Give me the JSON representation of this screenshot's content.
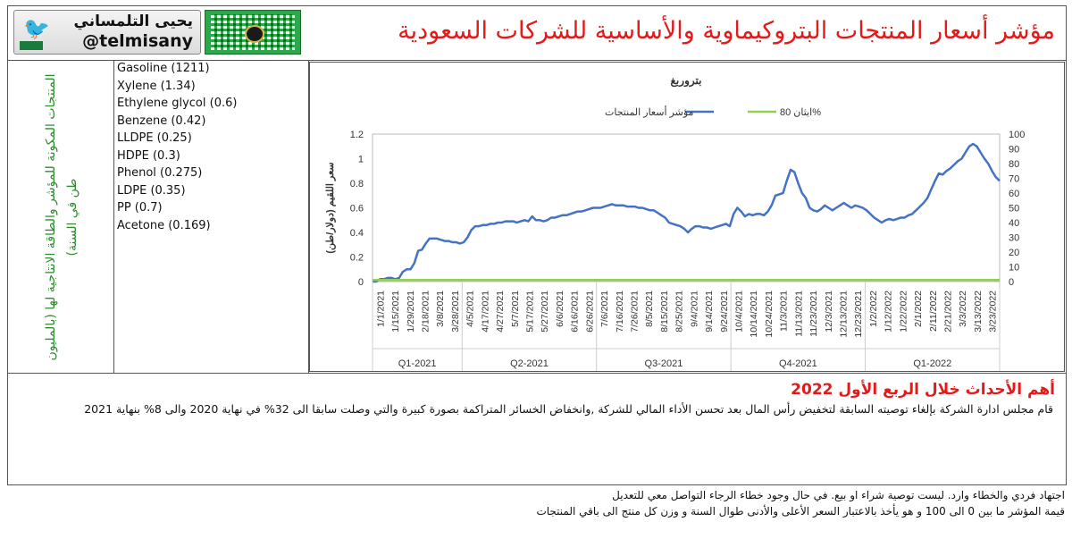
{
  "header": {
    "title": "مؤشر أسعار المنتجات البتروكيماوية والأساسية للشركات السعودية",
    "twitter_name": "يحيى التلمساني",
    "twitter_handle": "@telmisany",
    "twitter_icon": "bird-icon"
  },
  "left_note": "المنتجات المكونة للمؤشر والطاقة الانتاجية لها (بالمليون طن في السنة)",
  "products": [
    "Gasoline (1211)",
    "Xylene (1.34)",
    "Ethylene glycol (0.6)",
    "Benzene (0.42)",
    "LLDPE (0.25)",
    "HDPE (0.3)",
    "Phenol (0.275)",
    "LDPE (0.35)",
    "PP (0.7)",
    "Acetone (0.169)"
  ],
  "chart_data": {
    "type": "line",
    "title": "بتروربغ",
    "ylabel": "سعر اللقيم (دولار/طن)",
    "ylim": [
      0,
      1.2
    ],
    "y2lim": [
      0,
      100
    ],
    "y_ticks": [
      "0",
      "0.2",
      "0.4",
      "0.6",
      "0.8",
      "1",
      "1.2"
    ],
    "y2_ticks": [
      "0",
      "10",
      "20",
      "30",
      "40",
      "50",
      "60",
      "70",
      "80",
      "90",
      "100"
    ],
    "x_ticks": [
      "1/1/2021",
      "1/15/2021",
      "1/29/2021",
      "2/18/2021",
      "3/8/2021",
      "3/28/2021",
      "4/5/2021",
      "4/17/2021",
      "4/27/2021",
      "5/7/2021",
      "5/17/2021",
      "5/27/2021",
      "6/6/2021",
      "6/16/2021",
      "6/26/2021",
      "7/6/2021",
      "7/16/2021",
      "7/26/2021",
      "8/5/2021",
      "8/15/2021",
      "8/25/2021",
      "9/4/2021",
      "9/14/2021",
      "9/24/2021",
      "10/4/2021",
      "10/14/2021",
      "10/24/2021",
      "11/3/2021",
      "11/13/2021",
      "11/23/2021",
      "12/3/2021",
      "12/13/2021",
      "12/23/2021",
      "1/2/2022",
      "1/12/2022",
      "1/22/2022",
      "2/1/2022",
      "2/11/2022",
      "2/21/2022",
      "3/3/2022",
      "3/13/2022",
      "3/23/2022"
    ],
    "quarters": [
      "Q1-2021",
      "Q2-2021",
      "Q3-2021",
      "Q4-2021",
      "Q1-2022"
    ],
    "legend_placement": "top",
    "series": [
      {
        "name": "مؤشر أسعار المنتجات",
        "color": "#4472c4",
        "axis": "left",
        "values": [
          0,
          0,
          0.02,
          0.02,
          0.03,
          0.03,
          0.02,
          0.03,
          0.08,
          0.1,
          0.1,
          0.15,
          0.25,
          0.26,
          0.31,
          0.35,
          0.35,
          0.35,
          0.34,
          0.33,
          0.33,
          0.32,
          0.32,
          0.31,
          0.32,
          0.36,
          0.42,
          0.45,
          0.45,
          0.46,
          0.46,
          0.47,
          0.47,
          0.48,
          0.48,
          0.49,
          0.49,
          0.49,
          0.48,
          0.49,
          0.5,
          0.49,
          0.53,
          0.5,
          0.5,
          0.49,
          0.5,
          0.52,
          0.52,
          0.53,
          0.54,
          0.54,
          0.55,
          0.56,
          0.57,
          0.57,
          0.58,
          0.59,
          0.6,
          0.6,
          0.6,
          0.61,
          0.62,
          0.63,
          0.62,
          0.62,
          0.62,
          0.61,
          0.61,
          0.61,
          0.6,
          0.6,
          0.59,
          0.58,
          0.58,
          0.56,
          0.54,
          0.52,
          0.48,
          0.47,
          0.46,
          0.45,
          0.43,
          0.4,
          0.43,
          0.45,
          0.45,
          0.44,
          0.44,
          0.43,
          0.44,
          0.45,
          0.46,
          0.47,
          0.45,
          0.55,
          0.6,
          0.57,
          0.53,
          0.55,
          0.54,
          0.55,
          0.55,
          0.54,
          0.57,
          0.62,
          0.7,
          0.71,
          0.72,
          0.82,
          0.91,
          0.89,
          0.8,
          0.72,
          0.68,
          0.6,
          0.58,
          0.57,
          0.59,
          0.62,
          0.6,
          0.58,
          0.6,
          0.62,
          0.64,
          0.62,
          0.6,
          0.62,
          0.61,
          0.6,
          0.58,
          0.55,
          0.52,
          0.5,
          0.48,
          0.5,
          0.51,
          0.5,
          0.51,
          0.52,
          0.52,
          0.54,
          0.55,
          0.58,
          0.61,
          0.64,
          0.68,
          0.75,
          0.82,
          0.88,
          0.87,
          0.9,
          0.92,
          0.95,
          0.98,
          1.0,
          1.05,
          1.1,
          1.12,
          1.1,
          1.05,
          1.0,
          0.96,
          0.9,
          0.85,
          0.82
        ]
      },
      {
        "name": "ايثان 80%",
        "color": "#92d050",
        "axis": "left",
        "values": [
          0.012,
          0.012,
          0.012,
          0.012,
          0.012,
          0.012,
          0.012,
          0.012,
          0.012,
          0.012,
          0.012,
          0.012,
          0.012,
          0.012,
          0.012,
          0.012,
          0.012,
          0.012,
          0.012,
          0.012
        ]
      }
    ]
  },
  "events": {
    "title": "أهم الأحداث خلال الربع الأول 2022",
    "body": "قام مجلس ادارة  الشركة بإلغاء توصيته السابقة لتخفيض رأس المال بعد تحسن الأداء المالي للشركة ,وانخفاض الخسائر المتراكمة بصورة كبيرة والتي وصلت سابقا الى 32% في نهاية 2020 والى 8% بنهاية 2021"
  },
  "footer": {
    "line1": "اجتهاد فردي والخطاء وارد. ليست توصية شراء او بيع. في حال وجود خطاء الرجاء التواصل معي للتعديل",
    "line2": "قيمة المؤشر ما بين 0 الى 100 و هو يأخذ بالاعتبار السعر الأعلى والأدنى طوال السنة و وزن كل منتج الى باقي المنتجات"
  }
}
